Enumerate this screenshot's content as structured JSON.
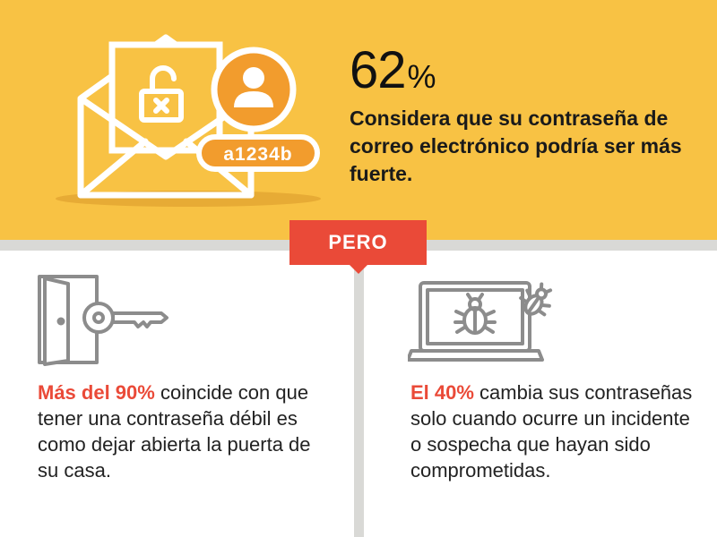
{
  "header": {
    "password_tag": "a1234b",
    "stat_value": "62",
    "stat_unit": "%",
    "stat_text": "Considera que su contraseña de correo electrónico podría ser más fuerte."
  },
  "badge": {
    "label": "PERO"
  },
  "facts": [
    {
      "highlight": "Más del 90%",
      "text": " coincide con que tener una contraseña débil es como dejar abierta la puerta de su casa."
    },
    {
      "highlight": "El 40%",
      "text": " cambia sus contraseñas solo cuando ocurre un incidente o sospecha que hayan sido comprometidas."
    }
  ],
  "colors": {
    "top_background": "#f8c244",
    "accent_orange": "#f29c2d",
    "accent_red": "#ea4a38",
    "divider_gray": "#d9d9d6",
    "icon_gray": "#8c8c8c"
  }
}
